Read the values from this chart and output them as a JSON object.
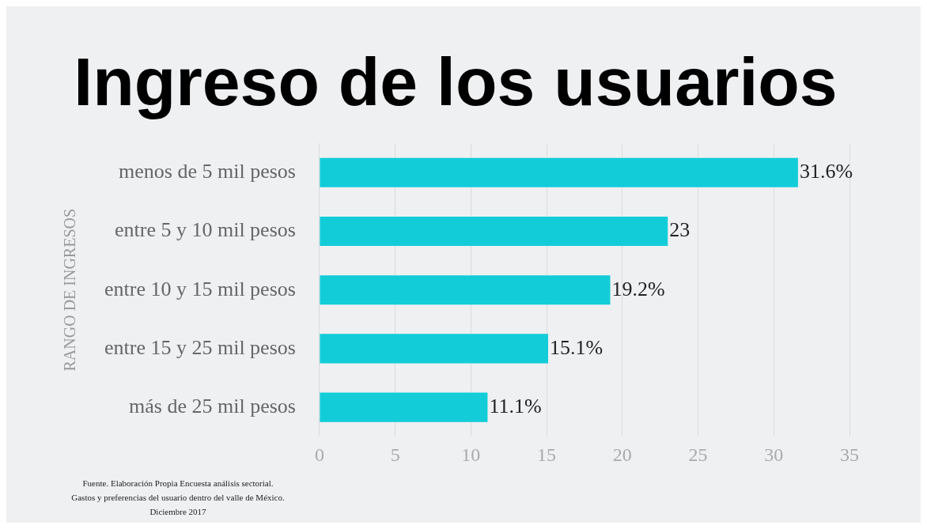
{
  "chart_data": {
    "type": "bar",
    "orientation": "horizontal",
    "title": "Ingreso de los usuarios",
    "ylabel": "RANGO DE INGRESOS",
    "categories": [
      "menos de 5 mil pesos",
      "entre 5 y 10 mil pesos",
      "entre 10 y 15 mil pesos",
      "entre 15 y 25 mil pesos",
      "más de 25 mil pesos"
    ],
    "values": [
      31.6,
      23,
      19.2,
      15.1,
      11.1
    ],
    "value_labels": [
      "31.6%",
      "23",
      "19.2%",
      "15.1%",
      "11.1%"
    ],
    "color": "#12cdd8",
    "xlim": [
      0,
      35
    ],
    "xticks": [
      0,
      5,
      10,
      15,
      20,
      25,
      30,
      35
    ],
    "grid": "x",
    "legend": false,
    "annotations": [
      "Fuente. Elaboración Propia Encuesta análisis sectorial.",
      "Gastos y preferencias del usuario dentro del valle de México.",
      "Diciembre 2017"
    ]
  }
}
